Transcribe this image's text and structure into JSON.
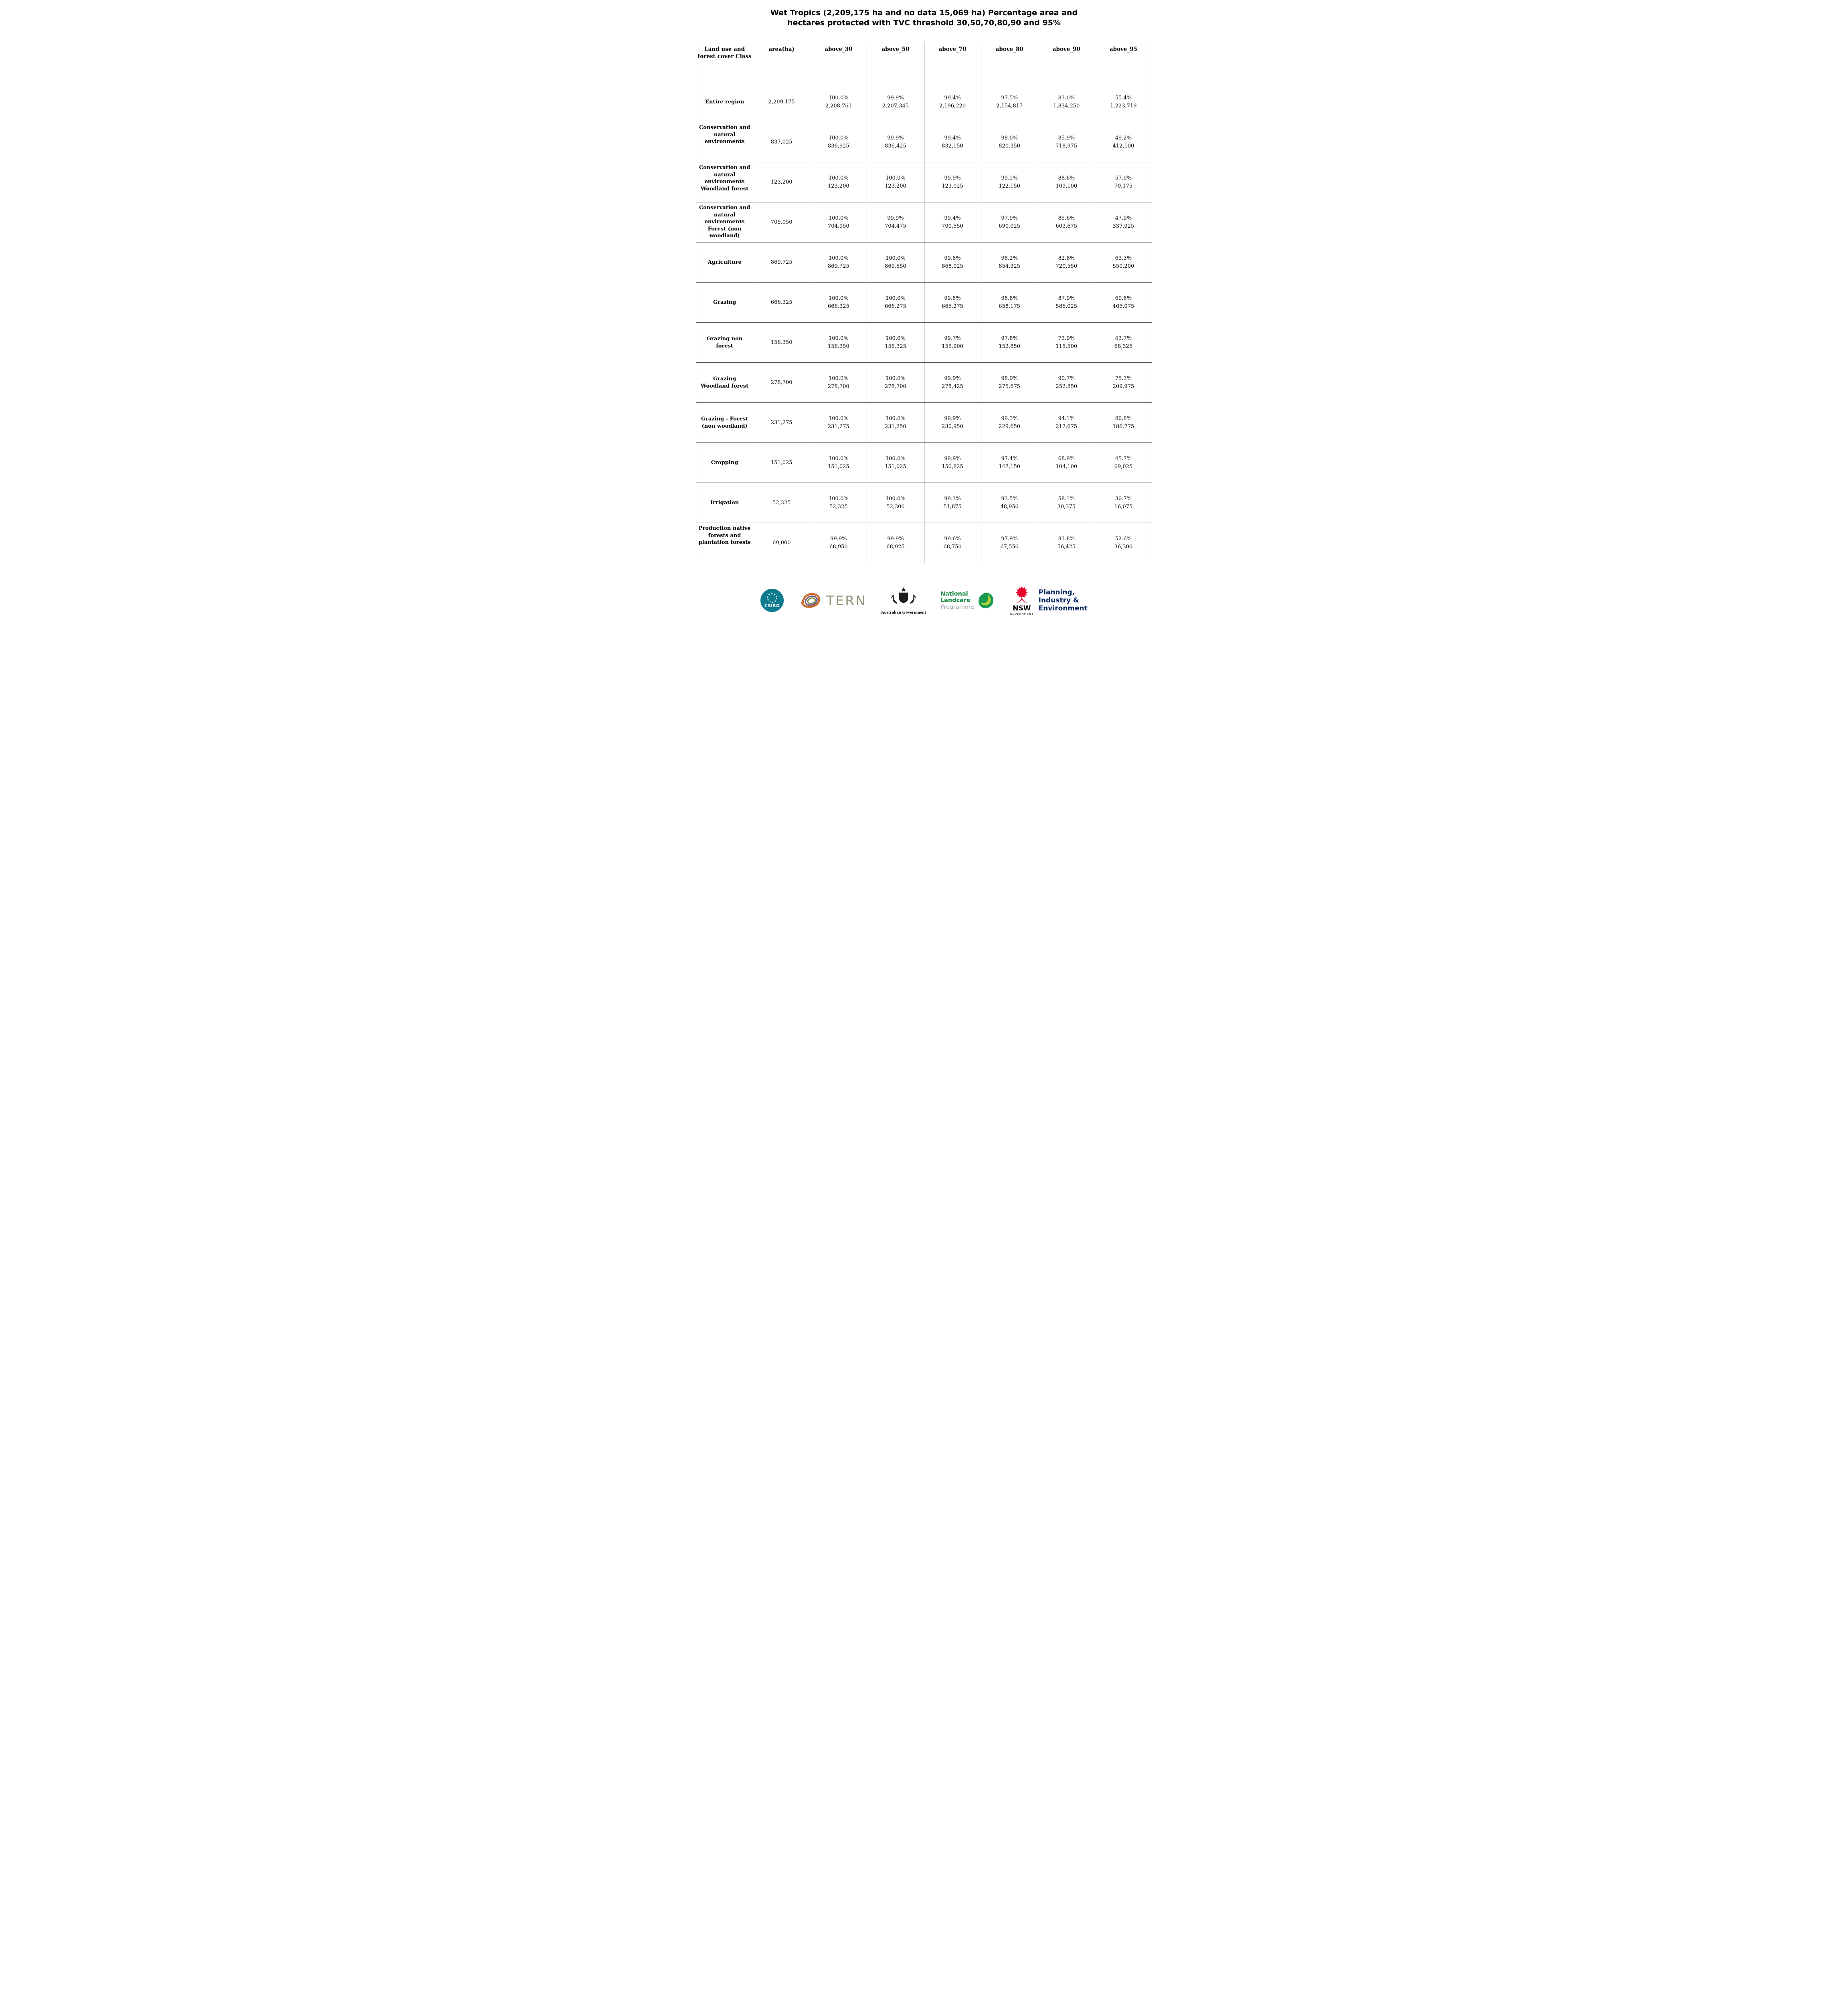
{
  "page": {
    "title": "Wet Tropics (2,209,175 ha and no data 15,069 ha) Percentage area and hectares protected with TVC threshold 30,50,70,80,90 and 95%"
  },
  "table": {
    "headers": [
      "Land use and forest cover Class",
      "area(ha)",
      "above_30",
      "above_50",
      "above_70",
      "above_80",
      "above_90",
      "above_95"
    ],
    "rows": [
      {
        "label": "Entire region",
        "area": "2,209,175",
        "values": [
          [
            "100.0%",
            "2,208,761"
          ],
          [
            "99.9%",
            "2,207,345"
          ],
          [
            "99.4%",
            "2,196,220"
          ],
          [
            "97.5%",
            "2,154,817"
          ],
          [
            "83.0%",
            "1,834,250"
          ],
          [
            "55.4%",
            "1,223,719"
          ]
        ]
      },
      {
        "label": "Conservation and natural environments",
        "area": "837,025",
        "values": [
          [
            "100.0%",
            "836,925"
          ],
          [
            "99.9%",
            "836,425"
          ],
          [
            "99.4%",
            "832,150"
          ],
          [
            "98.0%",
            "820,350"
          ],
          [
            "85.9%",
            "718,975"
          ],
          [
            "49.2%",
            "412,100"
          ]
        ]
      },
      {
        "label": "Conservation and natural environments Woodland forest",
        "area": "123,200",
        "values": [
          [
            "100.0%",
            "123,200"
          ],
          [
            "100.0%",
            "123,200"
          ],
          [
            "99.9%",
            "123,025"
          ],
          [
            "99.1%",
            "122,150"
          ],
          [
            "88.6%",
            "109,100"
          ],
          [
            "57.0%",
            "70,175"
          ]
        ]
      },
      {
        "label": "Conservation and natural environments Forest (non woodland)",
        "area": "705,050",
        "values": [
          [
            "100.0%",
            "704,950"
          ],
          [
            "99.9%",
            "704,475"
          ],
          [
            "99.4%",
            "700,550"
          ],
          [
            "97.9%",
            "690,025"
          ],
          [
            "85.6%",
            "603,675"
          ],
          [
            "47.9%",
            "337,925"
          ]
        ]
      },
      {
        "label": "Agriculture",
        "area": "869,725",
        "values": [
          [
            "100.0%",
            "869,725"
          ],
          [
            "100.0%",
            "869,650"
          ],
          [
            "99.8%",
            "868,025"
          ],
          [
            "98.2%",
            "854,325"
          ],
          [
            "82.8%",
            "720,550"
          ],
          [
            "63.3%",
            "550,200"
          ]
        ]
      },
      {
        "label": "Grazing",
        "area": "666,325",
        "values": [
          [
            "100.0%",
            "666,325"
          ],
          [
            "100.0%",
            "666,275"
          ],
          [
            "99.8%",
            "665,275"
          ],
          [
            "98.8%",
            "658,175"
          ],
          [
            "87.9%",
            "586,025"
          ],
          [
            "69.8%",
            "465,075"
          ]
        ]
      },
      {
        "label": "Grazing non forest",
        "area": "156,350",
        "values": [
          [
            "100.0%",
            "156,350"
          ],
          [
            "100.0%",
            "156,325"
          ],
          [
            "99.7%",
            "155,900"
          ],
          [
            "97.8%",
            "152,850"
          ],
          [
            "73.9%",
            "115,500"
          ],
          [
            "43.7%",
            "68,325"
          ]
        ]
      },
      {
        "label": "Grazing Woodland forest",
        "area": "278,700",
        "values": [
          [
            "100.0%",
            "278,700"
          ],
          [
            "100.0%",
            "278,700"
          ],
          [
            "99.9%",
            "278,425"
          ],
          [
            "98.9%",
            "275,675"
          ],
          [
            "90.7%",
            "252,850"
          ],
          [
            "75.3%",
            "209,975"
          ]
        ]
      },
      {
        "label": "Grazing - Forest (non woodland)",
        "area": "231,275",
        "values": [
          [
            "100.0%",
            "231,275"
          ],
          [
            "100.0%",
            "231,250"
          ],
          [
            "99.9%",
            "230,950"
          ],
          [
            "99.3%",
            "229,650"
          ],
          [
            "94.1%",
            "217,675"
          ],
          [
            "80.8%",
            "186,775"
          ]
        ]
      },
      {
        "label": "Cropping",
        "area": "151,025",
        "values": [
          [
            "100.0%",
            "151,025"
          ],
          [
            "100.0%",
            "151,025"
          ],
          [
            "99.9%",
            "150,825"
          ],
          [
            "97.4%",
            "147,150"
          ],
          [
            "68.9%",
            "104,100"
          ],
          [
            "45.7%",
            "69,025"
          ]
        ]
      },
      {
        "label": "Irrigation",
        "area": "52,325",
        "values": [
          [
            "100.0%",
            "52,325"
          ],
          [
            "100.0%",
            "52,300"
          ],
          [
            "99.1%",
            "51,875"
          ],
          [
            "93.5%",
            "48,950"
          ],
          [
            "58.1%",
            "30,375"
          ],
          [
            "30.7%",
            "16,075"
          ]
        ]
      },
      {
        "label": "Production native forests and plantation forests",
        "area": "69,000",
        "values": [
          [
            "99.9%",
            "68,950"
          ],
          [
            "99.9%",
            "68,925"
          ],
          [
            "99.6%",
            "68,750"
          ],
          [
            "97.9%",
            "67,550"
          ],
          [
            "81.8%",
            "56,425"
          ],
          [
            "52.6%",
            "36,300"
          ]
        ]
      }
    ]
  },
  "footer": {
    "csiro": {
      "label": "CSIRO"
    },
    "tern": {
      "label": "TERN"
    },
    "australian_government": {
      "label": "Australian Government"
    },
    "landcare": {
      "line1": "National",
      "line2": "Landcare",
      "line3": "Programme"
    },
    "nsw": {
      "label": "NSW",
      "sublabel": "GOVERNMENT"
    },
    "dpie": {
      "line1": "Planning,",
      "line2": "Industry &",
      "line3": "Environment"
    },
    "colors": {
      "csiro_teal": "#0e7a8e",
      "tern_gray_green": "#8e9678",
      "landcare_green": "#11883f",
      "landcare_gray": "#9aa0a6",
      "nsw_red": "#e4002b",
      "dpie_navy": "#002664",
      "table_border": "#4d4d4d"
    },
    "icons": [
      "csiro-starburst-icon",
      "tern-scribble-icon",
      "coat-of-arms-icon",
      "landcare-leaf-icon",
      "waratah-icon"
    ]
  }
}
